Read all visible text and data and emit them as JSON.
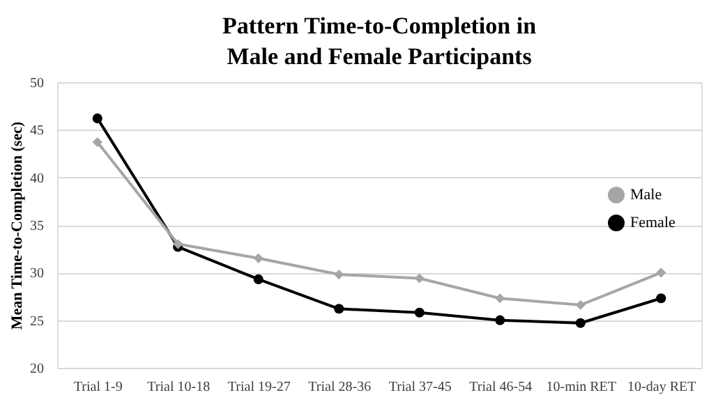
{
  "chart_data": {
    "type": "line",
    "title": "Pattern Time-to-Completion in Male and Female Participants",
    "ylabel": "Mean Time-to-Completion (sec)",
    "categories": [
      "Trial 1-9",
      "Trial 10-18",
      "Trial 19-27",
      "Trial 28-36",
      "Trial 37-45",
      "Trial 46-54",
      "10-min RET",
      "10-day RET"
    ],
    "series": [
      {
        "name": "Male",
        "color": "#a6a6a6",
        "marker": "diamond",
        "values": [
          43.7,
          33.0,
          31.5,
          29.8,
          29.4,
          27.3,
          26.6,
          30.0
        ]
      },
      {
        "name": "Female",
        "color": "#000000",
        "marker": "circle",
        "values": [
          46.2,
          32.7,
          29.3,
          26.2,
          25.8,
          25.0,
          24.7,
          27.3
        ]
      }
    ],
    "ylim": [
      20,
      50
    ],
    "yticks": [
      20,
      25,
      30,
      35,
      40,
      45,
      50
    ],
    "grid": "y",
    "legend": "right"
  }
}
